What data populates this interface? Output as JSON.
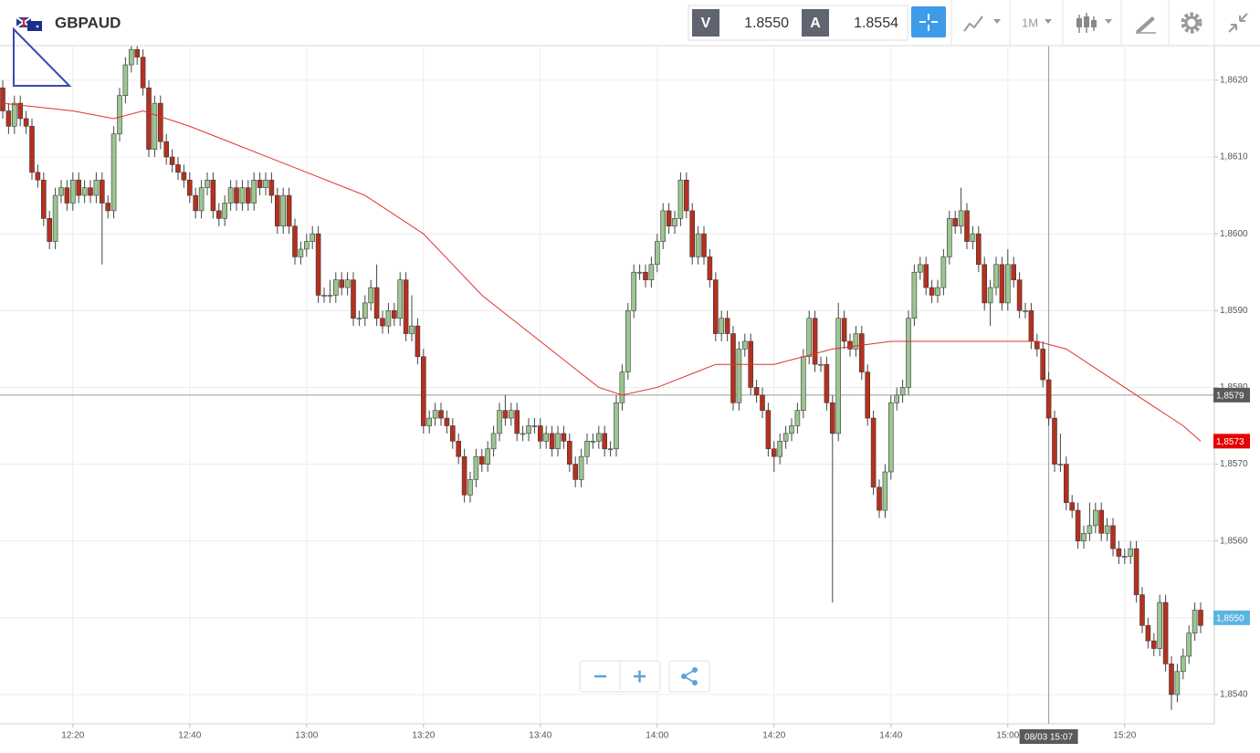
{
  "toolbar": {
    "symbol": "GBPAUD",
    "sell_label": "V",
    "sell_price": "1.8550",
    "buy_label": "A",
    "buy_price": "1.8554",
    "timeframe": "1M"
  },
  "chart_data": {
    "type": "candlestick",
    "grid": true,
    "up_color": "#9cc58f",
    "down_color": "#b5301e",
    "categories": [
      "12:08",
      "12:09",
      "12:10",
      "12:11",
      "12:12",
      "12:13",
      "12:14",
      "12:15",
      "12:16",
      "12:17",
      "12:18",
      "12:19",
      "12:20",
      "12:21",
      "12:22",
      "12:23",
      "12:24",
      "12:25",
      "12:26",
      "12:27",
      "12:28",
      "12:29",
      "12:30",
      "12:31",
      "12:32",
      "12:33",
      "12:34",
      "12:35",
      "12:36",
      "12:37",
      "12:38",
      "12:39",
      "12:40",
      "12:41",
      "12:42",
      "12:43",
      "12:44",
      "12:45",
      "12:46",
      "12:47",
      "12:48",
      "12:49",
      "12:50",
      "12:51",
      "12:52",
      "12:53",
      "12:54",
      "12:55",
      "12:56",
      "12:57",
      "12:58",
      "12:59",
      "13:00",
      "13:01",
      "13:02",
      "13:03",
      "13:04",
      "13:05",
      "13:06",
      "13:07",
      "13:08",
      "13:09",
      "13:10",
      "13:11",
      "13:12",
      "13:13",
      "13:14",
      "13:15",
      "13:16",
      "13:17",
      "13:18",
      "13:19",
      "13:20",
      "13:21",
      "13:22",
      "13:23",
      "13:24",
      "13:25",
      "13:26",
      "13:27",
      "13:28",
      "13:29",
      "13:30",
      "13:31",
      "13:32",
      "13:33",
      "13:34",
      "13:35",
      "13:36",
      "13:37",
      "13:38",
      "13:39",
      "13:40",
      "13:41",
      "13:42",
      "13:43",
      "13:44",
      "13:45",
      "13:46",
      "13:47",
      "13:48",
      "13:49",
      "13:50",
      "13:51",
      "13:52",
      "13:53",
      "13:54",
      "13:55",
      "13:56",
      "13:57",
      "13:58",
      "13:59",
      "14:00",
      "14:01",
      "14:02",
      "14:03",
      "14:04",
      "14:05",
      "14:06",
      "14:07",
      "14:08",
      "14:09",
      "14:10",
      "14:11",
      "14:12",
      "14:13",
      "14:14",
      "14:15",
      "14:16",
      "14:17",
      "14:18",
      "14:19",
      "14:20",
      "14:21",
      "14:22",
      "14:23",
      "14:24",
      "14:25",
      "14:26",
      "14:27",
      "14:28",
      "14:29",
      "14:30",
      "14:31",
      "14:32",
      "14:33",
      "14:34",
      "14:35",
      "14:36",
      "14:37",
      "14:38",
      "14:39",
      "14:40",
      "14:41",
      "14:42",
      "14:43",
      "14:44",
      "14:45",
      "14:46",
      "14:47",
      "14:48",
      "14:49",
      "14:50",
      "14:51",
      "14:52",
      "14:53",
      "14:54",
      "14:55",
      "14:56",
      "14:57",
      "14:58",
      "14:59",
      "15:00",
      "15:01",
      "15:02",
      "15:03",
      "15:04",
      "15:05",
      "15:06",
      "15:07",
      "15:08",
      "15:09",
      "15:10",
      "15:11",
      "15:12",
      "15:13",
      "15:14",
      "15:15",
      "15:16",
      "15:17",
      "15:18",
      "15:19",
      "15:20",
      "15:21",
      "15:22",
      "15:23",
      "15:24",
      "15:25",
      "15:26",
      "15:27",
      "15:28",
      "15:29",
      "15:30",
      "15:31",
      "15:32",
      "15:33"
    ],
    "open": [
      1.8619,
      1.8616,
      1.8614,
      1.8617,
      1.8615,
      1.8614,
      1.8608,
      1.8607,
      1.8602,
      1.8599,
      1.8605,
      1.8606,
      1.8604,
      1.8607,
      1.8605,
      1.8606,
      1.8605,
      1.8607,
      1.8604,
      1.8603,
      1.8613,
      1.8618,
      1.8622,
      1.8624,
      1.8623,
      1.8619,
      1.8611,
      1.8617,
      1.8612,
      1.861,
      1.8609,
      1.8608,
      1.8607,
      1.8605,
      1.8603,
      1.8606,
      1.8607,
      1.8603,
      1.8602,
      1.8604,
      1.8606,
      1.8604,
      1.8606,
      1.8604,
      1.8607,
      1.8606,
      1.8607,
      1.8605,
      1.8601,
      1.8605,
      1.8601,
      1.8597,
      1.8598,
      1.8599,
      1.86,
      1.8592,
      1.8592,
      1.8592,
      1.8594,
      1.8593,
      1.8594,
      1.8589,
      1.8589,
      1.8591,
      1.8593,
      1.8589,
      1.8588,
      1.859,
      1.8589,
      1.8594,
      1.8587,
      1.8588,
      1.8584,
      1.8575,
      1.8576,
      1.8577,
      1.8576,
      1.8575,
      1.8573,
      1.8571,
      1.8566,
      1.8568,
      1.8571,
      1.857,
      1.8572,
      1.8574,
      1.8577,
      1.8576,
      1.8577,
      1.8574,
      1.8574,
      1.8575,
      1.8575,
      1.8573,
      1.8574,
      1.8572,
      1.8574,
      1.8573,
      1.857,
      1.8568,
      1.8571,
      1.8573,
      1.8573,
      1.8574,
      1.8572,
      1.8572,
      1.8578,
      1.8582,
      1.859,
      1.8595,
      1.8595,
      1.8594,
      1.8596,
      1.8599,
      1.8603,
      1.8601,
      1.8602,
      1.8607,
      1.8603,
      1.8597,
      1.86,
      1.8597,
      1.8594,
      1.8587,
      1.8589,
      1.8587,
      1.8578,
      1.8585,
      1.8586,
      1.858,
      1.8579,
      1.8577,
      1.8572,
      1.8571,
      1.8573,
      1.8574,
      1.8575,
      1.8577,
      1.8584,
      1.8589,
      1.8583,
      1.8583,
      1.8578,
      1.8574,
      1.8589,
      1.8586,
      1.8585,
      1.8587,
      1.8582,
      1.8576,
      1.8567,
      1.8564,
      1.8569,
      1.8578,
      1.8579,
      1.858,
      1.8589,
      1.8595,
      1.8596,
      1.8593,
      1.8592,
      1.8593,
      1.8597,
      1.8602,
      1.8601,
      1.8603,
      1.8599,
      1.86,
      1.8596,
      1.8591,
      1.8593,
      1.8596,
      1.8591,
      1.8596,
      1.8594,
      1.859,
      1.859,
      1.8586,
      1.8585,
      1.8581,
      1.8576,
      1.857,
      1.857,
      1.8565,
      1.8564,
      1.856,
      1.8561,
      1.8562,
      1.8564,
      1.8561,
      1.8562,
      1.8559,
      1.8558,
      1.8558,
      1.8559,
      1.8553,
      1.8549,
      1.8547,
      1.8546,
      1.8552,
      1.8544,
      1.854,
      1.8543,
      1.8545,
      1.8548,
      1.8551
    ],
    "high": [
      1.862,
      1.8617,
      1.8618,
      1.8618,
      1.8616,
      1.8615,
      1.8609,
      1.8608,
      1.8603,
      1.8606,
      1.8607,
      1.8607,
      1.8608,
      1.8608,
      1.8607,
      1.8607,
      1.8608,
      1.8608,
      1.8605,
      1.8614,
      1.8619,
      1.8623,
      1.8625,
      1.8625,
      1.8624,
      1.862,
      1.8618,
      1.8618,
      1.8613,
      1.8611,
      1.861,
      1.8609,
      1.8608,
      1.8606,
      1.8607,
      1.8608,
      1.8608,
      1.8604,
      1.8605,
      1.8607,
      1.8607,
      1.8607,
      1.8607,
      1.8608,
      1.8608,
      1.8608,
      1.8608,
      1.8606,
      1.8606,
      1.8606,
      1.8602,
      1.8599,
      1.86,
      1.8601,
      1.8601,
      1.8593,
      1.8594,
      1.8595,
      1.8595,
      1.8595,
      1.8595,
      1.859,
      1.8592,
      1.8594,
      1.8596,
      1.859,
      1.8591,
      1.8591,
      1.8595,
      1.8595,
      1.8592,
      1.8589,
      1.8585,
      1.8577,
      1.8578,
      1.8578,
      1.8577,
      1.8576,
      1.8574,
      1.8572,
      1.8569,
      1.8572,
      1.8572,
      1.8573,
      1.8575,
      1.8578,
      1.8579,
      1.8578,
      1.8578,
      1.8575,
      1.8576,
      1.8576,
      1.8576,
      1.8575,
      1.8575,
      1.8575,
      1.8575,
      1.8574,
      1.8571,
      1.8572,
      1.8574,
      1.8574,
      1.8575,
      1.8575,
      1.8573,
      1.8579,
      1.8583,
      1.8591,
      1.8596,
      1.8596,
      1.8596,
      1.8597,
      1.86,
      1.8604,
      1.8604,
      1.8603,
      1.8608,
      1.8608,
      1.8604,
      1.8601,
      1.8601,
      1.8598,
      1.8595,
      1.859,
      1.859,
      1.8588,
      1.8586,
      1.8587,
      1.8587,
      1.8581,
      1.858,
      1.8578,
      1.8573,
      1.8574,
      1.8575,
      1.8576,
      1.8578,
      1.8585,
      1.859,
      1.859,
      1.8584,
      1.8584,
      1.8579,
      1.8591,
      1.859,
      1.8587,
      1.8588,
      1.8588,
      1.8583,
      1.8577,
      1.8568,
      1.857,
      1.8579,
      1.858,
      1.8581,
      1.859,
      1.8596,
      1.8597,
      1.8597,
      1.8594,
      1.8594,
      1.8598,
      1.8603,
      1.8603,
      1.8606,
      1.8604,
      1.8601,
      1.8601,
      1.8597,
      1.8594,
      1.8597,
      1.8597,
      1.8598,
      1.8597,
      1.8595,
      1.8591,
      1.8591,
      1.8587,
      1.8586,
      1.8582,
      1.8577,
      1.8574,
      1.8571,
      1.8566,
      1.8565,
      1.8562,
      1.8565,
      1.8565,
      1.8565,
      1.8563,
      1.8563,
      1.856,
      1.8559,
      1.856,
      1.856,
      1.8554,
      1.855,
      1.8548,
      1.8553,
      1.8553,
      1.8545,
      1.8544,
      1.8546,
      1.8549,
      1.8552,
      1.8552
    ],
    "low": [
      1.8615,
      1.8613,
      1.8613,
      1.8614,
      1.8613,
      1.8607,
      1.8606,
      1.8601,
      1.8598,
      1.8598,
      1.8604,
      1.8603,
      1.8603,
      1.8604,
      1.8604,
      1.8604,
      1.8604,
      1.8596,
      1.8602,
      1.8602,
      1.8612,
      1.8617,
      1.8621,
      1.8622,
      1.8618,
      1.861,
      1.861,
      1.8611,
      1.8609,
      1.8608,
      1.8607,
      1.8606,
      1.8604,
      1.8602,
      1.8602,
      1.8605,
      1.8602,
      1.8601,
      1.8601,
      1.8603,
      1.8603,
      1.8603,
      1.8603,
      1.8603,
      1.8605,
      1.8605,
      1.8604,
      1.86,
      1.86,
      1.86,
      1.8596,
      1.8596,
      1.8597,
      1.8598,
      1.8591,
      1.8591,
      1.8591,
      1.8591,
      1.8592,
      1.8592,
      1.8588,
      1.8588,
      1.8588,
      1.859,
      1.8588,
      1.8587,
      1.8587,
      1.8588,
      1.8588,
      1.8586,
      1.8586,
      1.8583,
      1.8574,
      1.8574,
      1.8575,
      1.8575,
      1.8574,
      1.8572,
      1.857,
      1.8565,
      1.8565,
      1.8567,
      1.8569,
      1.8569,
      1.8571,
      1.8573,
      1.8575,
      1.8575,
      1.8573,
      1.8573,
      1.8573,
      1.8574,
      1.8572,
      1.8572,
      1.8571,
      1.8571,
      1.8572,
      1.8569,
      1.8567,
      1.8567,
      1.857,
      1.8572,
      1.8572,
      1.8571,
      1.8571,
      1.8571,
      1.8577,
      1.8581,
      1.8589,
      1.8594,
      1.8593,
      1.8593,
      1.8595,
      1.8598,
      1.86,
      1.86,
      1.8601,
      1.8602,
      1.8596,
      1.8596,
      1.8596,
      1.8593,
      1.8586,
      1.8586,
      1.8586,
      1.8577,
      1.8577,
      1.8584,
      1.8579,
      1.8578,
      1.8576,
      1.8571,
      1.8569,
      1.857,
      1.8572,
      1.8573,
      1.8574,
      1.8576,
      1.8583,
      1.8582,
      1.8582,
      1.8577,
      1.8552,
      1.8573,
      1.8585,
      1.8584,
      1.8584,
      1.8581,
      1.8575,
      1.8566,
      1.8563,
      1.8563,
      1.8568,
      1.8577,
      1.8578,
      1.8579,
      1.8588,
      1.8594,
      1.8592,
      1.8591,
      1.8591,
      1.8592,
      1.8596,
      1.86,
      1.86,
      1.8598,
      1.8598,
      1.8595,
      1.859,
      1.8588,
      1.8592,
      1.859,
      1.859,
      1.8593,
      1.8589,
      1.8589,
      1.8585,
      1.8584,
      1.858,
      1.8575,
      1.8569,
      1.8569,
      1.8564,
      1.8563,
      1.8559,
      1.8559,
      1.856,
      1.8561,
      1.856,
      1.856,
      1.8558,
      1.8557,
      1.8557,
      1.8557,
      1.8552,
      1.8548,
      1.8546,
      1.8545,
      1.8545,
      1.8543,
      1.8538,
      1.8539,
      1.8542,
      1.8544,
      1.8547,
      1.8548
    ],
    "close": [
      1.8616,
      1.8614,
      1.8617,
      1.8615,
      1.8614,
      1.8608,
      1.8607,
      1.8602,
      1.8599,
      1.8605,
      1.8606,
      1.8604,
      1.8607,
      1.8605,
      1.8606,
      1.8605,
      1.8607,
      1.8604,
      1.8603,
      1.8613,
      1.8618,
      1.8622,
      1.8624,
      1.8623,
      1.8619,
      1.8611,
      1.8617,
      1.8612,
      1.861,
      1.8609,
      1.8608,
      1.8607,
      1.8605,
      1.8603,
      1.8606,
      1.8607,
      1.8603,
      1.8602,
      1.8604,
      1.8606,
      1.8604,
      1.8606,
      1.8604,
      1.8607,
      1.8606,
      1.8607,
      1.8605,
      1.8601,
      1.8605,
      1.8601,
      1.8597,
      1.8598,
      1.8599,
      1.86,
      1.8592,
      1.8592,
      1.8592,
      1.8594,
      1.8593,
      1.8594,
      1.8589,
      1.8589,
      1.8591,
      1.8593,
      1.8589,
      1.8588,
      1.859,
      1.8589,
      1.8594,
      1.8587,
      1.8588,
      1.8584,
      1.8575,
      1.8576,
      1.8577,
      1.8576,
      1.8575,
      1.8573,
      1.8571,
      1.8566,
      1.8568,
      1.8571,
      1.857,
      1.8572,
      1.8574,
      1.8577,
      1.8576,
      1.8577,
      1.8574,
      1.8574,
      1.8575,
      1.8575,
      1.8573,
      1.8574,
      1.8572,
      1.8574,
      1.8573,
      1.857,
      1.8568,
      1.8571,
      1.8573,
      1.8573,
      1.8574,
      1.8572,
      1.8572,
      1.8578,
      1.8582,
      1.859,
      1.8595,
      1.8595,
      1.8594,
      1.8596,
      1.8599,
      1.8603,
      1.8601,
      1.8602,
      1.8607,
      1.8603,
      1.8597,
      1.86,
      1.8597,
      1.8594,
      1.8587,
      1.8589,
      1.8587,
      1.8578,
      1.8585,
      1.8586,
      1.858,
      1.8579,
      1.8577,
      1.8572,
      1.8571,
      1.8573,
      1.8574,
      1.8575,
      1.8577,
      1.8584,
      1.8589,
      1.8583,
      1.8583,
      1.8578,
      1.8574,
      1.8589,
      1.8586,
      1.8585,
      1.8587,
      1.8582,
      1.8576,
      1.8567,
      1.8564,
      1.8569,
      1.8578,
      1.8579,
      1.858,
      1.8589,
      1.8595,
      1.8596,
      1.8593,
      1.8592,
      1.8593,
      1.8597,
      1.8602,
      1.8601,
      1.8603,
      1.8599,
      1.86,
      1.8596,
      1.8591,
      1.8593,
      1.8596,
      1.8591,
      1.8596,
      1.8594,
      1.859,
      1.859,
      1.8586,
      1.8585,
      1.8581,
      1.8576,
      1.857,
      1.857,
      1.8565,
      1.8564,
      1.856,
      1.8561,
      1.8562,
      1.8564,
      1.8561,
      1.8562,
      1.8559,
      1.8558,
      1.8558,
      1.8559,
      1.8553,
      1.8549,
      1.8547,
      1.8546,
      1.8552,
      1.8544,
      1.854,
      1.8543,
      1.8545,
      1.8548,
      1.8551,
      1.8549
    ],
    "moving_average": {
      "color": "#e03030",
      "x": [
        "12:08",
        "12:20",
        "12:27",
        "12:32",
        "12:40",
        "12:50",
        "13:00",
        "13:10",
        "13:20",
        "13:30",
        "13:40",
        "13:50",
        "13:54",
        "14:00",
        "14:10",
        "14:20",
        "14:30",
        "14:40",
        "14:50",
        "15:00",
        "15:05",
        "15:10",
        "15:20",
        "15:30",
        "15:33"
      ],
      "values": [
        1.8617,
        1.8616,
        1.8615,
        1.8616,
        1.8614,
        1.8611,
        1.8608,
        1.8605,
        1.86,
        1.8592,
        1.8586,
        1.858,
        1.8579,
        1.858,
        1.8583,
        1.8583,
        1.8585,
        1.8586,
        1.8586,
        1.8586,
        1.8586,
        1.8585,
        1.858,
        1.8575,
        1.8573
      ]
    },
    "ylim": [
      1.85362,
      1.86245
    ],
    "yticks": [
      {
        "value": 1.854,
        "label": "1,8540"
      },
      {
        "value": 1.855,
        "label": "1,8550"
      },
      {
        "value": 1.856,
        "label": "1,8560"
      },
      {
        "value": 1.857,
        "label": "1,8570"
      },
      {
        "value": 1.858,
        "label": "1,8580"
      },
      {
        "value": 1.859,
        "label": "1,8590"
      },
      {
        "value": 1.86,
        "label": "1,8600"
      },
      {
        "value": 1.861,
        "label": "1,8610"
      },
      {
        "value": 1.862,
        "label": "1,8620"
      }
    ],
    "xticks": [
      "12:20",
      "12:40",
      "13:00",
      "13:20",
      "13:40",
      "14:00",
      "14:20",
      "14:40",
      "15:00",
      "15:20"
    ],
    "crosshair_y": {
      "value": 1.8579,
      "label": "1,8579"
    },
    "crosshair_x": "08/03 15:07",
    "price_markers": [
      {
        "value": 1.8573,
        "label": "1,8573",
        "color": "#e60000"
      },
      {
        "value": 1.855,
        "label": "1,8550",
        "color": "#5bb5e0"
      }
    ]
  }
}
